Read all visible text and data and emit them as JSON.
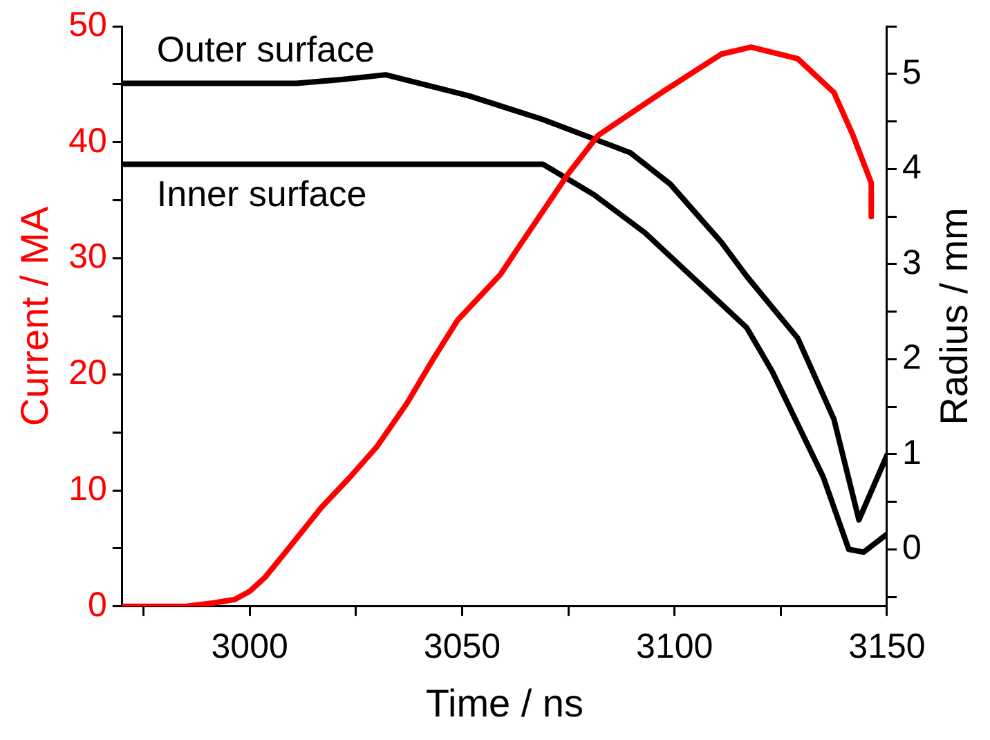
{
  "chart_data": {
    "type": "line",
    "xlabel": "Time / ns",
    "ylabel": "Current / MA",
    "y2label": "Radius / mm",
    "xlim": [
      2970,
      3150
    ],
    "xticks": [
      {
        "value": 2975,
        "label": null
      },
      3000,
      {
        "value": 3025,
        "label": null
      },
      3050,
      {
        "value": 3075,
        "label": null
      },
      3100,
      {
        "value": 3125,
        "label": null
      },
      3150
    ],
    "ylim": [
      0,
      50
    ],
    "yticks": [
      0,
      {
        "value": 5,
        "label": null
      },
      10,
      {
        "value": 15,
        "label": null
      },
      20,
      {
        "value": 25,
        "label": null
      },
      30,
      {
        "value": 35,
        "label": null
      },
      40,
      {
        "value": 45,
        "label": null
      },
      50
    ],
    "y2lim": [
      -0.6,
      5.5
    ],
    "y2ticks": [
      {
        "value": -0.5,
        "label": null
      },
      0,
      {
        "value": 0.5,
        "label": null
      },
      1,
      {
        "value": 1.5,
        "label": null
      },
      2,
      {
        "value": 2.5,
        "label": null
      },
      3,
      {
        "value": 3.5,
        "label": null
      },
      4,
      {
        "value": 4.5,
        "label": null
      },
      5,
      {
        "value": 5.5,
        "label": null
      }
    ],
    "grid": false,
    "legend": false,
    "marker": "none",
    "line_style": "solid",
    "series": [
      {
        "color": "#ff0000",
        "x": [
          2970,
          2985,
          2991.6,
          2996.5,
          3000,
          3003.6,
          3009.6,
          3016.8,
          3024,
          3030,
          3037,
          3043,
          3049,
          3059,
          3063,
          3075,
          3082,
          3097,
          3111,
          3118,
          3129,
          3137.5,
          3142,
          3146.3,
          3146.3
        ],
        "values": [
          0,
          0,
          0.3,
          0.6,
          1.3,
          2.5,
          5.2,
          8.5,
          11.3,
          13.8,
          17.5,
          21.2,
          24.7,
          28.6,
          30.8,
          37.3,
          40.6,
          44.3,
          47.6,
          48.2,
          47.2,
          44.3,
          40.6,
          36.5,
          33.6
        ]
      },
      {
        "name": "Outer surface",
        "color": "#000000",
        "axis": "y2",
        "x": [
          2970,
          3011,
          3021.6,
          3032,
          3051.5,
          3069,
          3089.6,
          3099,
          3111,
          3117,
          3129,
          3137.5,
          3143.4,
          3150
        ],
        "values": [
          4.9,
          4.9,
          4.94,
          4.99,
          4.77,
          4.52,
          4.17,
          3.84,
          3.23,
          2.87,
          2.22,
          1.37,
          0.31,
          0.99
        ]
      },
      {
        "name": "Inner surface",
        "color": "#000000",
        "axis": "y2",
        "x": [
          2970,
          3069,
          3081,
          3093,
          3105,
          3117,
          3123,
          3135,
          3141,
          3144.5,
          3150
        ],
        "values": [
          4.05,
          4.05,
          3.73,
          3.33,
          2.83,
          2.33,
          1.87,
          0.76,
          0,
          -0.03,
          0.16
        ]
      }
    ]
  }
}
